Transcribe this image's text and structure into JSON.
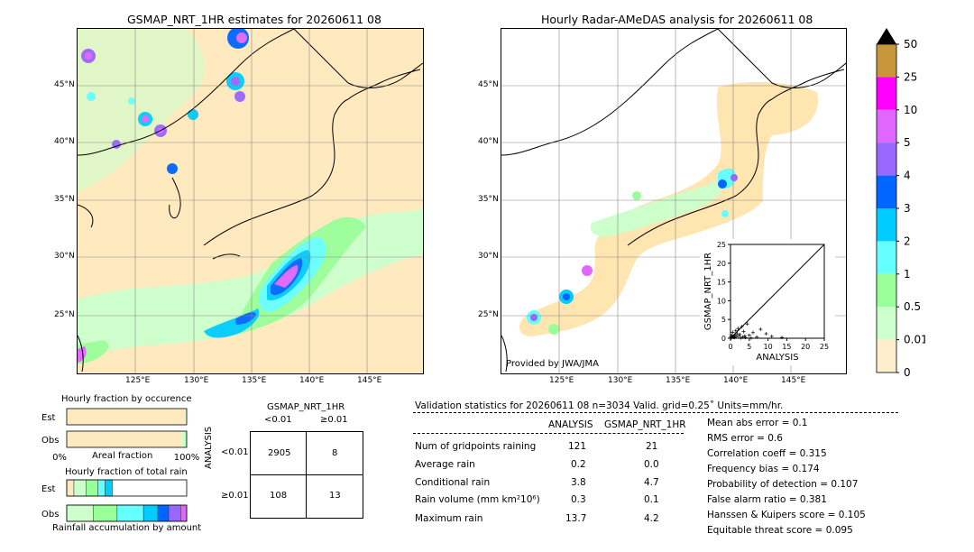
{
  "left_map": {
    "title": "GSMAP_NRT_1HR estimates for 20260611 08",
    "lat_labels": [
      "45°N",
      "40°N",
      "35°N",
      "30°N",
      "25°N"
    ],
    "lon_labels": [
      "125°E",
      "130°E",
      "135°E",
      "140°E",
      "145°E"
    ]
  },
  "right_map": {
    "title": "Hourly Radar-AMeDAS analysis for 20260611 08",
    "credit": "Provided by JWA/JMA",
    "lat_labels": [
      "45°N",
      "40°N",
      "35°N",
      "30°N",
      "25°N"
    ],
    "lon_labels": [
      "125°E",
      "130°E",
      "135°E",
      "140°E",
      "145°E"
    ]
  },
  "colorbar": {
    "labels": [
      "50",
      "25",
      "10",
      "5",
      "4",
      "3",
      "2",
      "1",
      "0.5",
      "0.01",
      "0"
    ],
    "colors": [
      "#c8963c",
      "#ff00ff",
      "#e066ff",
      "#9966ff",
      "#0066ff",
      "#00ccff",
      "#66ffff",
      "#99ff99",
      "#ccffcc",
      "#ffeecc"
    ]
  },
  "chart_data": [
    {
      "type": "scatter",
      "xlabel": "ANALYSIS",
      "ylabel": "GSMAP_NRT_1HR",
      "xlim": [
        0,
        25
      ],
      "ylim": [
        0,
        25
      ],
      "xticks": [
        "0",
        "5",
        "10",
        "15",
        "20",
        "25"
      ],
      "yticks": [
        "0",
        "5",
        "10",
        "15",
        "20",
        "25"
      ],
      "points": [
        [
          0.2,
          0.1
        ],
        [
          0.5,
          0.3
        ],
        [
          0.8,
          0.2
        ],
        [
          1.0,
          0.5
        ],
        [
          1.2,
          0.9
        ],
        [
          1.5,
          0.4
        ],
        [
          1.8,
          1.2
        ],
        [
          2.0,
          2.6
        ],
        [
          2.2,
          0.6
        ],
        [
          2.5,
          1.0
        ],
        [
          3.0,
          3.1
        ],
        [
          3.2,
          0.3
        ],
        [
          3.5,
          1.8
        ],
        [
          4.0,
          0.2
        ],
        [
          4.5,
          3.8
        ],
        [
          5.0,
          0.8
        ],
        [
          5.5,
          0.1
        ],
        [
          6.0,
          1.5
        ],
        [
          7.0,
          0.3
        ],
        [
          8.0,
          2.4
        ],
        [
          9.5,
          1.2
        ],
        [
          11.0,
          0.5
        ],
        [
          13.7,
          0.2
        ],
        [
          0.3,
          0.8
        ],
        [
          0.6,
          1.6
        ],
        [
          1.4,
          2.0
        ],
        [
          0.1,
          0.4
        ],
        [
          2.8,
          0.1
        ],
        [
          1.1,
          0.2
        ],
        [
          3.8,
          0.6
        ]
      ]
    },
    {
      "type": "bar",
      "title": "Hourly fraction by occurence",
      "xlabel": "Areal fraction",
      "xtick_labels": [
        "0%",
        "100%"
      ],
      "categories": [
        "Est",
        "Obs"
      ],
      "series": [
        {
          "values": [
            0.993,
            0.9601
          ]
        },
        {
          "values": [
            0.003,
            0.0279
          ]
        },
        {
          "values": [
            0.003,
            0.008
          ]
        },
        {
          "values": [
            0.001,
            0.003
          ]
        },
        {
          "values": [
            0.0,
            0.001
          ]
        }
      ]
    },
    {
      "type": "bar",
      "title": "Hourly fraction of total rain",
      "xlabel": "Rainfall accumulation by amount",
      "categories": [
        "Est",
        "Obs"
      ],
      "series": [
        {
          "values": [
            0.06,
            0.0
          ]
        },
        {
          "values": [
            0.1,
            0.22
          ]
        },
        {
          "values": [
            0.1,
            0.2
          ]
        },
        {
          "values": [
            0.06,
            0.22
          ]
        },
        {
          "values": [
            0.06,
            0.12
          ]
        },
        {
          "values": [
            0.0,
            0.09
          ]
        },
        {
          "values": [
            0.0,
            0.1
          ]
        },
        {
          "values": [
            0.0,
            0.05
          ]
        }
      ]
    }
  ],
  "contingency": {
    "title": "GSMAP_NRT_1HR",
    "col_headers": [
      "<0.01",
      "≥0.01"
    ],
    "row_title": "ANALYSIS",
    "row_headers": [
      "<0.01",
      "≥0.01"
    ],
    "cells": [
      [
        "2905",
        "8"
      ],
      [
        "108",
        "13"
      ]
    ]
  },
  "validation": {
    "header": "Validation statistics for 20260611 08  n=3034 Valid. grid=0.25˚ Units=mm/hr.",
    "col_analysis": "ANALYSIS",
    "col_gsmap": "GSMAP_NRT_1HR",
    "rows": [
      {
        "label": "Num of gridpoints raining",
        "analysis": "121",
        "gsmap": "21"
      },
      {
        "label": "Average rain",
        "analysis": "0.2",
        "gsmap": "0.0"
      },
      {
        "label": "Conditional rain",
        "analysis": "3.8",
        "gsmap": "4.7"
      },
      {
        "label": "Rain volume (mm km²10⁶)",
        "analysis": "0.3",
        "gsmap": "0.1"
      },
      {
        "label": "Maximum rain",
        "analysis": "13.7",
        "gsmap": "4.2"
      }
    ],
    "scores": [
      "Mean abs error =    0.1",
      "RMS error =    0.6",
      "Correlation coeff =  0.315",
      "Frequency bias =  0.174",
      "Probability of detection =  0.107",
      "False alarm ratio =  0.381",
      "Hanssen & Kuipers score =  0.105",
      "Equitable threat score =  0.095"
    ]
  }
}
